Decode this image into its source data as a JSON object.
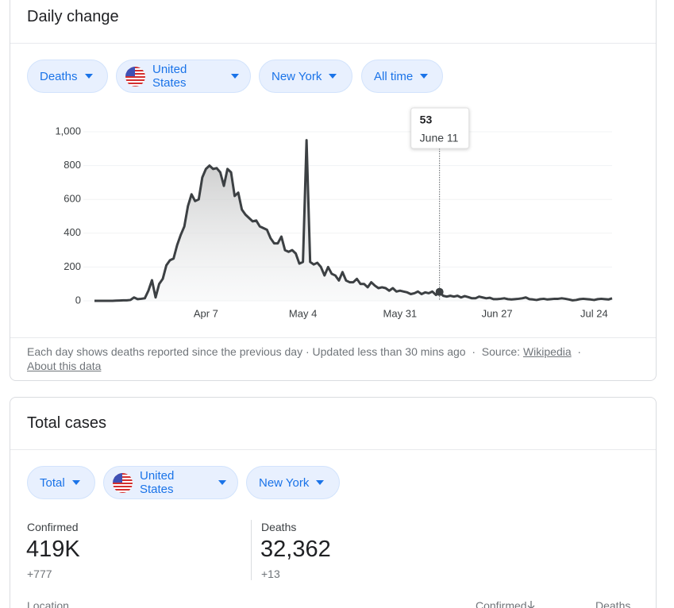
{
  "daily_change": {
    "title": "Daily change",
    "filters": [
      "Deaths",
      "United States",
      "New York",
      "All time"
    ],
    "footer": {
      "note": "Each day shows deaths reported since the previous day · Updated less than 30 mins ago",
      "separator": "·",
      "source_label": "Source:",
      "source_link": "Wikipedia",
      "about_link": "About this data"
    }
  },
  "chart_data": {
    "type": "line",
    "color": "#3c4043",
    "grid": true,
    "categories": [
      null,
      null,
      null,
      null,
      null,
      null,
      null,
      null,
      null,
      null,
      null,
      null,
      null,
      null,
      null,
      null,
      null,
      null,
      null,
      null,
      null,
      null,
      null,
      null,
      null,
      null,
      null,
      null,
      null,
      null,
      null,
      "Apr 7",
      null,
      null,
      null,
      null,
      null,
      null,
      null,
      null,
      null,
      null,
      null,
      null,
      null,
      null,
      null,
      null,
      null,
      null,
      null,
      null,
      null,
      null,
      null,
      null,
      null,
      null,
      "May 4",
      null,
      null,
      null,
      null,
      null,
      null,
      null,
      null,
      null,
      null,
      null,
      null,
      null,
      null,
      null,
      null,
      null,
      null,
      null,
      null,
      null,
      null,
      null,
      null,
      null,
      null,
      "May 31",
      null,
      null,
      null,
      null,
      null,
      null,
      null,
      null,
      null,
      null,
      null,
      null,
      null,
      null,
      null,
      null,
      null,
      null,
      null,
      null,
      null,
      null,
      null,
      null,
      null,
      null,
      "Jun 27",
      null,
      null,
      null,
      null,
      null,
      null,
      null,
      null,
      null,
      null,
      null,
      null,
      null,
      null,
      null,
      null,
      null,
      null,
      null,
      null,
      null,
      null,
      null,
      null,
      null,
      null,
      "Jul 24",
      null,
      null,
      null,
      null,
      null
    ],
    "values": [
      0,
      0,
      0,
      0,
      0,
      0,
      1,
      2,
      3,
      3,
      5,
      20,
      10,
      12,
      15,
      60,
      122,
      20,
      100,
      130,
      210,
      240,
      250,
      330,
      390,
      440,
      560,
      630,
      590,
      600,
      730,
      780,
      800,
      780,
      785,
      760,
      680,
      780,
      760,
      620,
      640,
      540,
      510,
      490,
      470,
      475,
      440,
      430,
      420,
      370,
      340,
      340,
      380,
      300,
      290,
      300,
      280,
      220,
      230,
      950,
      230,
      215,
      225,
      200,
      150,
      200,
      160,
      150,
      120,
      170,
      120,
      110,
      110,
      130,
      100,
      100,
      80,
      110,
      90,
      75,
      80,
      75,
      60,
      75,
      55,
      60,
      55,
      50,
      40,
      45,
      55,
      40,
      50,
      45,
      55,
      35,
      53,
      30,
      25,
      30,
      25,
      30,
      20,
      28,
      22,
      15,
      15,
      25,
      20,
      15,
      18,
      10,
      10,
      12,
      15,
      10,
      8,
      10,
      12,
      15,
      20,
      10,
      8,
      5,
      10,
      12,
      8,
      10,
      12,
      12,
      15,
      12,
      8,
      3,
      5,
      10,
      12,
      10,
      8,
      5,
      10,
      12,
      10,
      8,
      15
    ],
    "ylim": [
      0,
      1000
    ],
    "yticks": [
      0,
      200,
      400,
      600,
      800,
      {
        "value": 1000,
        "label": "1,000"
      }
    ],
    "tooltip_date": "June 11"
  },
  "total_cases": {
    "title": "Total cases",
    "filters": [
      "Total",
      "United States",
      "New York"
    ],
    "stats": [
      {
        "label": "Confirmed",
        "value": "419K",
        "change": "+777"
      },
      {
        "label": "Deaths",
        "value": "32,362",
        "change": "+13"
      }
    ],
    "table_headers": [
      "Location",
      "Confirmed",
      "Deaths"
    ]
  }
}
